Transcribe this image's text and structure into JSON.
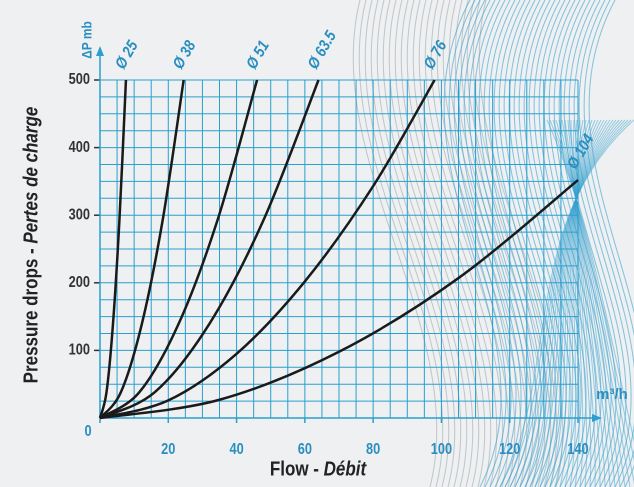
{
  "chart_data": {
    "type": "line",
    "y_label_main": "Pressure drops - ",
    "y_label_italic": "Pertes de charge",
    "x_label_main": "Flow - ",
    "x_label_italic": "Débit",
    "y_unit": "ΔP mb",
    "x_unit": "m³/h",
    "xlim": [
      0,
      140
    ],
    "xticks": [
      0,
      20,
      40,
      60,
      80,
      100,
      120,
      140
    ],
    "ylim": [
      0,
      500
    ],
    "yticks": [
      100,
      200,
      300,
      400,
      500
    ],
    "grid": true,
    "grid_color": "#2a9fd0",
    "series": [
      {
        "name": "Ø 25",
        "color": "#1a1a1a",
        "x": [
          0,
          1.9,
          3.8,
          5.7,
          7.6
        ],
        "values": [
          0,
          38,
          139,
          294,
          500
        ]
      },
      {
        "name": "Ø 38",
        "color": "#1a1a1a",
        "x": [
          0,
          6.1,
          12.25,
          18.4,
          24.5
        ],
        "values": [
          0,
          38,
          139,
          294,
          500
        ]
      },
      {
        "name": "Ø 51",
        "color": "#1a1a1a",
        "x": [
          0,
          11.5,
          23,
          34.5,
          46
        ],
        "values": [
          0,
          38,
          139,
          294,
          500
        ]
      },
      {
        "name": "Ø 63.5",
        "color": "#1a1a1a",
        "x": [
          0,
          16,
          32,
          48,
          64
        ],
        "values": [
          0,
          38,
          139,
          294,
          500
        ]
      },
      {
        "name": "Ø 76",
        "color": "#1a1a1a",
        "x": [
          0,
          20,
          40,
          60,
          80,
          98
        ],
        "values": [
          0,
          26,
          95,
          202,
          343,
          500
        ]
      },
      {
        "name": "Ø 104",
        "color": "#1a1a1a",
        "x": [
          0,
          35,
          70,
          105,
          140
        ],
        "values": [
          0,
          27,
          98,
          207,
          352
        ]
      }
    ]
  }
}
